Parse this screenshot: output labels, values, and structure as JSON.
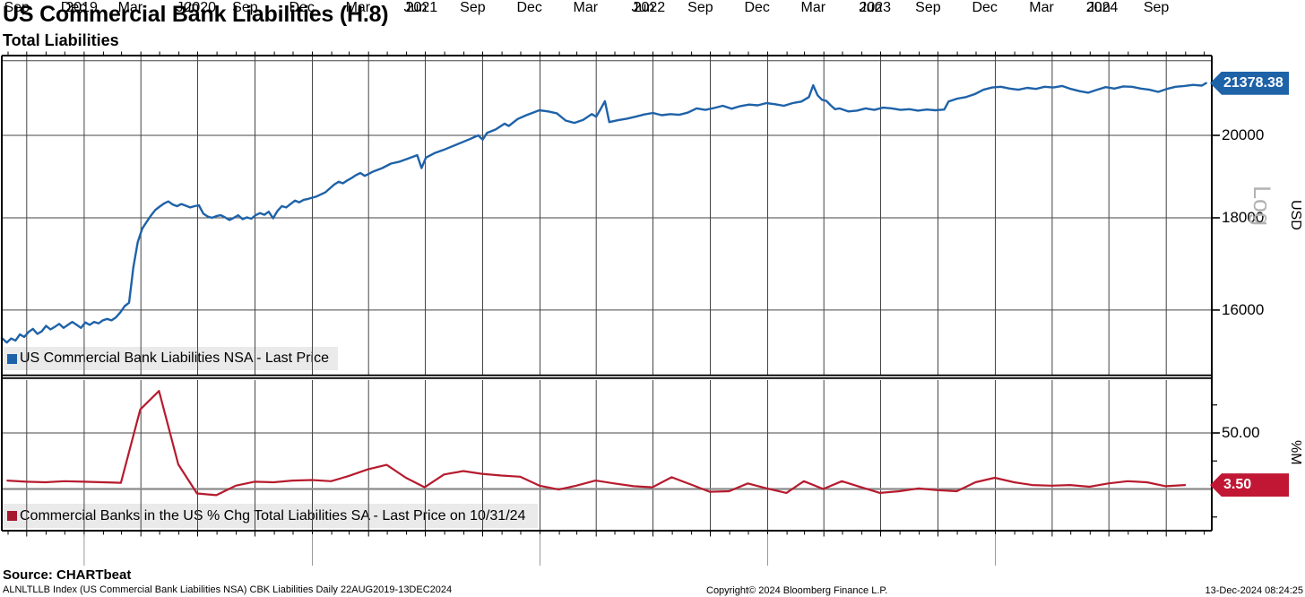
{
  "header": {
    "title": "US Commercial Bank Liabilities (H.8)",
    "subtitle": "Total Liabilities"
  },
  "top_panel": {
    "legend": "US Commercial Bank Liabilities NSA - Last Price",
    "unit_label": "USD",
    "scale_label": "Log",
    "last_price_tag": "21378.38",
    "ytick_labels": [
      {
        "value": 20000,
        "label": "20000"
      },
      {
        "value": 18000,
        "label": "18000"
      },
      {
        "value": 16000,
        "label": "16000"
      }
    ],
    "grid_values": [
      22000,
      20000,
      18000,
      16000
    ]
  },
  "bottom_panel": {
    "legend": "Commercial Banks in the US % Chg Total Liabilities SA - Last Price on 10/31/24",
    "unit_label": "%M",
    "last_price_tag": "3.50",
    "ytick_labels": [
      {
        "value": 50,
        "label": "50.00"
      }
    ],
    "minor_tick_values": [
      75,
      25,
      -25
    ],
    "zero_line_value": 0
  },
  "x_axis": {
    "month_labels": [
      {
        "date": "2019-09-15",
        "label": "Sep"
      },
      {
        "date": "2019-12-15",
        "label": "Dec"
      },
      {
        "date": "2020-03-15",
        "label": "Mar"
      },
      {
        "date": "2020-06-15",
        "label": "Jun"
      },
      {
        "date": "2020-09-15",
        "label": "Sep"
      },
      {
        "date": "2020-12-15",
        "label": "Dec"
      },
      {
        "date": "2021-03-15",
        "label": "Mar"
      },
      {
        "date": "2021-06-15",
        "label": "Jun"
      },
      {
        "date": "2021-09-15",
        "label": "Sep"
      },
      {
        "date": "2021-12-15",
        "label": "Dec"
      },
      {
        "date": "2022-03-15",
        "label": "Mar"
      },
      {
        "date": "2022-06-15",
        "label": "Jun"
      },
      {
        "date": "2022-09-15",
        "label": "Sep"
      },
      {
        "date": "2022-12-15",
        "label": "Dec"
      },
      {
        "date": "2023-03-15",
        "label": "Mar"
      },
      {
        "date": "2023-06-15",
        "label": "Jun"
      },
      {
        "date": "2023-09-15",
        "label": "Sep"
      },
      {
        "date": "2023-12-15",
        "label": "Dec"
      },
      {
        "date": "2024-03-15",
        "label": "Mar"
      },
      {
        "date": "2024-06-15",
        "label": "Jun"
      },
      {
        "date": "2024-09-15",
        "label": "Sep"
      }
    ],
    "year_labels": [
      {
        "anchor": "2019-12-28",
        "label": "2019"
      },
      {
        "anchor": "2020-07-05",
        "label": "2020"
      },
      {
        "anchor": "2021-06-25",
        "label": "2021"
      },
      {
        "anchor": "2022-06-25",
        "label": "2022"
      },
      {
        "anchor": "2023-06-22",
        "label": "2023"
      },
      {
        "anchor": "2024-06-20",
        "label": "2024"
      }
    ],
    "range": {
      "start": "2019-08-22",
      "end": "2024-12-13"
    }
  },
  "footer": {
    "source": "Source: CHARTbeat",
    "index_line": "ALNLTLLB Index (US Commercial Bank Liabilities NSA) CBK Liabilities  Daily 22AUG2019-13DEC2024",
    "copyright": "Copyright© 2024 Bloomberg Finance L.P.",
    "timestamp": "13-Dec-2024 08:24:25"
  },
  "colors": {
    "blue_line": "#1e62a8",
    "blue_tag": "#1e62a8",
    "red_line": "#b61b2e",
    "red_tag": "#c11734",
    "red_swatch": "#a6192e",
    "legend_bg": "#eaeaea",
    "grid": "#454545",
    "zero_line": "#8a8a8a",
    "watermark": "#b3b3b3"
  },
  "chart_data": [
    {
      "type": "line",
      "name": "US Commercial Bank Liabilities NSA - Last Price",
      "panel": "top",
      "unit": "USD (billions)",
      "y_scale": "log",
      "ylim_hint": [
        15000,
        22400
      ],
      "last_value": 21378.38,
      "points": [
        [
          "2019-08-22",
          15440
        ],
        [
          "2019-08-30",
          15350
        ],
        [
          "2019-09-06",
          15430
        ],
        [
          "2019-09-13",
          15390
        ],
        [
          "2019-09-20",
          15510
        ],
        [
          "2019-09-27",
          15460
        ],
        [
          "2019-10-04",
          15560
        ],
        [
          "2019-10-11",
          15620
        ],
        [
          "2019-10-18",
          15520
        ],
        [
          "2019-10-25",
          15570
        ],
        [
          "2019-11-01",
          15680
        ],
        [
          "2019-11-08",
          15610
        ],
        [
          "2019-11-15",
          15660
        ],
        [
          "2019-11-22",
          15720
        ],
        [
          "2019-11-29",
          15640
        ],
        [
          "2019-12-06",
          15700
        ],
        [
          "2019-12-13",
          15760
        ],
        [
          "2019-12-20",
          15700
        ],
        [
          "2019-12-27",
          15640
        ],
        [
          "2020-01-03",
          15750
        ],
        [
          "2020-01-10",
          15700
        ],
        [
          "2020-01-17",
          15760
        ],
        [
          "2020-01-24",
          15730
        ],
        [
          "2020-01-31",
          15790
        ],
        [
          "2020-02-07",
          15820
        ],
        [
          "2020-02-14",
          15790
        ],
        [
          "2020-02-21",
          15850
        ],
        [
          "2020-02-28",
          15950
        ],
        [
          "2020-03-06",
          16080
        ],
        [
          "2020-03-13",
          16150
        ],
        [
          "2020-03-20",
          16900
        ],
        [
          "2020-03-27",
          17450
        ],
        [
          "2020-04-03",
          17750
        ],
        [
          "2020-04-10",
          17900
        ],
        [
          "2020-04-17",
          18050
        ],
        [
          "2020-04-24",
          18180
        ],
        [
          "2020-05-01",
          18260
        ],
        [
          "2020-05-08",
          18330
        ],
        [
          "2020-05-15",
          18380
        ],
        [
          "2020-05-22",
          18310
        ],
        [
          "2020-05-29",
          18270
        ],
        [
          "2020-06-05",
          18320
        ],
        [
          "2020-06-12",
          18280
        ],
        [
          "2020-06-19",
          18240
        ],
        [
          "2020-06-26",
          18270
        ],
        [
          "2020-07-03",
          18290
        ],
        [
          "2020-07-10",
          18100
        ],
        [
          "2020-07-17",
          18030
        ],
        [
          "2020-07-24",
          18000
        ],
        [
          "2020-07-31",
          18040
        ],
        [
          "2020-08-07",
          18060
        ],
        [
          "2020-08-14",
          18010
        ],
        [
          "2020-08-21",
          17950
        ],
        [
          "2020-08-28",
          18000
        ],
        [
          "2020-09-04",
          18060
        ],
        [
          "2020-09-11",
          17970
        ],
        [
          "2020-09-18",
          18010
        ],
        [
          "2020-09-25",
          17980
        ],
        [
          "2020-10-02",
          18060
        ],
        [
          "2020-10-09",
          18110
        ],
        [
          "2020-10-16",
          18070
        ],
        [
          "2020-10-23",
          18140
        ],
        [
          "2020-10-30",
          17990
        ],
        [
          "2020-11-06",
          18160
        ],
        [
          "2020-11-13",
          18270
        ],
        [
          "2020-11-20",
          18240
        ],
        [
          "2020-11-27",
          18320
        ],
        [
          "2020-12-04",
          18400
        ],
        [
          "2020-12-11",
          18360
        ],
        [
          "2020-12-18",
          18420
        ],
        [
          "2020-12-25",
          18440
        ],
        [
          "2021-01-08",
          18500
        ],
        [
          "2021-01-22",
          18600
        ],
        [
          "2021-02-05",
          18780
        ],
        [
          "2021-02-12",
          18850
        ],
        [
          "2021-02-19",
          18810
        ],
        [
          "2021-02-26",
          18880
        ],
        [
          "2021-03-05",
          18940
        ],
        [
          "2021-03-12",
          19010
        ],
        [
          "2021-03-19",
          19060
        ],
        [
          "2021-03-26",
          18990
        ],
        [
          "2021-04-09",
          19100
        ],
        [
          "2021-04-23",
          19180
        ],
        [
          "2021-05-07",
          19290
        ],
        [
          "2021-05-21",
          19340
        ],
        [
          "2021-06-04",
          19420
        ],
        [
          "2021-06-18",
          19500
        ],
        [
          "2021-06-25",
          19180
        ],
        [
          "2021-07-02",
          19440
        ],
        [
          "2021-07-16",
          19550
        ],
        [
          "2021-07-30",
          19630
        ],
        [
          "2021-08-13",
          19720
        ],
        [
          "2021-08-27",
          19810
        ],
        [
          "2021-09-10",
          19900
        ],
        [
          "2021-09-24",
          20000
        ],
        [
          "2021-10-01",
          19890
        ],
        [
          "2021-10-08",
          20060
        ],
        [
          "2021-10-22",
          20150
        ],
        [
          "2021-11-05",
          20300
        ],
        [
          "2021-11-12",
          20240
        ],
        [
          "2021-11-26",
          20420
        ],
        [
          "2021-12-10",
          20520
        ],
        [
          "2021-12-31",
          20650
        ],
        [
          "2022-01-14",
          20620
        ],
        [
          "2022-01-28",
          20570
        ],
        [
          "2022-02-11",
          20380
        ],
        [
          "2022-02-25",
          20320
        ],
        [
          "2022-03-11",
          20400
        ],
        [
          "2022-03-25",
          20550
        ],
        [
          "2022-04-01",
          20480
        ],
        [
          "2022-04-08",
          20680
        ],
        [
          "2022-04-15",
          20890
        ],
        [
          "2022-04-22",
          20340
        ],
        [
          "2022-05-06",
          20390
        ],
        [
          "2022-05-20",
          20430
        ],
        [
          "2022-06-03",
          20480
        ],
        [
          "2022-06-17",
          20540
        ],
        [
          "2022-07-01",
          20580
        ],
        [
          "2022-07-15",
          20520
        ],
        [
          "2022-07-29",
          20550
        ],
        [
          "2022-08-12",
          20530
        ],
        [
          "2022-08-26",
          20590
        ],
        [
          "2022-09-09",
          20700
        ],
        [
          "2022-09-23",
          20660
        ],
        [
          "2022-10-07",
          20710
        ],
        [
          "2022-10-21",
          20770
        ],
        [
          "2022-11-04",
          20690
        ],
        [
          "2022-11-18",
          20760
        ],
        [
          "2022-12-02",
          20800
        ],
        [
          "2022-12-16",
          20780
        ],
        [
          "2022-12-30",
          20840
        ],
        [
          "2023-01-13",
          20810
        ],
        [
          "2023-01-27",
          20770
        ],
        [
          "2023-02-10",
          20840
        ],
        [
          "2023-02-24",
          20880
        ],
        [
          "2023-03-08",
          21000
        ],
        [
          "2023-03-15",
          21320
        ],
        [
          "2023-03-22",
          21050
        ],
        [
          "2023-03-29",
          20930
        ],
        [
          "2023-04-05",
          20900
        ],
        [
          "2023-04-12",
          20780
        ],
        [
          "2023-04-19",
          20680
        ],
        [
          "2023-04-26",
          20700
        ],
        [
          "2023-05-10",
          20620
        ],
        [
          "2023-05-24",
          20640
        ],
        [
          "2023-06-07",
          20700
        ],
        [
          "2023-06-21",
          20660
        ],
        [
          "2023-07-05",
          20720
        ],
        [
          "2023-07-19",
          20700
        ],
        [
          "2023-08-02",
          20660
        ],
        [
          "2023-08-16",
          20680
        ],
        [
          "2023-08-30",
          20640
        ],
        [
          "2023-09-13",
          20670
        ],
        [
          "2023-09-27",
          20650
        ],
        [
          "2023-10-11",
          20670
        ],
        [
          "2023-10-18",
          20880
        ],
        [
          "2023-11-01",
          20960
        ],
        [
          "2023-11-15",
          21000
        ],
        [
          "2023-11-29",
          21080
        ],
        [
          "2023-12-13",
          21200
        ],
        [
          "2023-12-27",
          21260
        ],
        [
          "2024-01-10",
          21280
        ],
        [
          "2024-01-24",
          21230
        ],
        [
          "2024-02-07",
          21200
        ],
        [
          "2024-02-21",
          21250
        ],
        [
          "2024-03-06",
          21220
        ],
        [
          "2024-03-20",
          21280
        ],
        [
          "2024-04-03",
          21260
        ],
        [
          "2024-04-17",
          21300
        ],
        [
          "2024-05-01",
          21220
        ],
        [
          "2024-05-15",
          21160
        ],
        [
          "2024-05-29",
          21120
        ],
        [
          "2024-06-12",
          21200
        ],
        [
          "2024-06-26",
          21270
        ],
        [
          "2024-07-10",
          21230
        ],
        [
          "2024-07-24",
          21290
        ],
        [
          "2024-08-07",
          21280
        ],
        [
          "2024-08-21",
          21230
        ],
        [
          "2024-09-04",
          21200
        ],
        [
          "2024-09-18",
          21140
        ],
        [
          "2024-10-02",
          21220
        ],
        [
          "2024-10-16",
          21280
        ],
        [
          "2024-10-30",
          21300
        ],
        [
          "2024-11-13",
          21330
        ],
        [
          "2024-11-27",
          21310
        ],
        [
          "2024-12-04",
          21378.38
        ]
      ]
    },
    {
      "type": "line",
      "name": "Commercial Banks in the US % Chg Total Liabilities SA",
      "panel": "bottom",
      "unit": "% change (monthly)",
      "y_scale": "linear",
      "ylim_hint": [
        -35,
        97
      ],
      "last_value": 3.5,
      "last_value_date": "2024-10-31",
      "points": [
        [
          "2019-08-31",
          7.5
        ],
        [
          "2019-09-30",
          6.5
        ],
        [
          "2019-10-31",
          6
        ],
        [
          "2019-11-30",
          7
        ],
        [
          "2019-12-31",
          6.5
        ],
        [
          "2020-01-31",
          6
        ],
        [
          "2020-02-29",
          5.5
        ],
        [
          "2020-03-31",
          71
        ],
        [
          "2020-04-30",
          87.5
        ],
        [
          "2020-05-31",
          22
        ],
        [
          "2020-06-30",
          -4
        ],
        [
          "2020-07-31",
          -5.5
        ],
        [
          "2020-08-31",
          3
        ],
        [
          "2020-09-30",
          6.5
        ],
        [
          "2020-10-31",
          6
        ],
        [
          "2020-11-30",
          7.5
        ],
        [
          "2020-12-31",
          8
        ],
        [
          "2021-01-31",
          7
        ],
        [
          "2021-02-28",
          11.5
        ],
        [
          "2021-03-31",
          17.5
        ],
        [
          "2021-04-30",
          21.5
        ],
        [
          "2021-05-31",
          10
        ],
        [
          "2021-06-30",
          1.5
        ],
        [
          "2021-07-31",
          13
        ],
        [
          "2021-08-31",
          16
        ],
        [
          "2021-09-30",
          13.5
        ],
        [
          "2021-10-31",
          12
        ],
        [
          "2021-11-30",
          11
        ],
        [
          "2021-12-31",
          3
        ],
        [
          "2022-01-31",
          -0.5
        ],
        [
          "2022-02-28",
          3
        ],
        [
          "2022-03-31",
          7.5
        ],
        [
          "2022-04-30",
          5
        ],
        [
          "2022-05-31",
          2.5
        ],
        [
          "2022-06-30",
          1.5
        ],
        [
          "2022-07-31",
          10.5
        ],
        [
          "2022-08-31",
          4
        ],
        [
          "2022-09-30",
          -2.5
        ],
        [
          "2022-10-31",
          -2
        ],
        [
          "2022-11-30",
          5
        ],
        [
          "2022-12-31",
          0.5
        ],
        [
          "2023-01-31",
          -3.5
        ],
        [
          "2023-02-28",
          7
        ],
        [
          "2023-03-31",
          0
        ],
        [
          "2023-04-30",
          7
        ],
        [
          "2023-05-31",
          1.5
        ],
        [
          "2023-06-30",
          -3.5
        ],
        [
          "2023-07-31",
          -2
        ],
        [
          "2023-08-31",
          0.5
        ],
        [
          "2023-09-30",
          -1
        ],
        [
          "2023-10-31",
          -2
        ],
        [
          "2023-11-30",
          6
        ],
        [
          "2023-12-31",
          10
        ],
        [
          "2024-01-31",
          6
        ],
        [
          "2024-02-29",
          3.5
        ],
        [
          "2024-03-31",
          3
        ],
        [
          "2024-04-30",
          3.5
        ],
        [
          "2024-05-31",
          2
        ],
        [
          "2024-06-30",
          5
        ],
        [
          "2024-07-31",
          7
        ],
        [
          "2024-08-31",
          6
        ],
        [
          "2024-09-30",
          2.5
        ],
        [
          "2024-10-31",
          3.5
        ]
      ]
    }
  ]
}
